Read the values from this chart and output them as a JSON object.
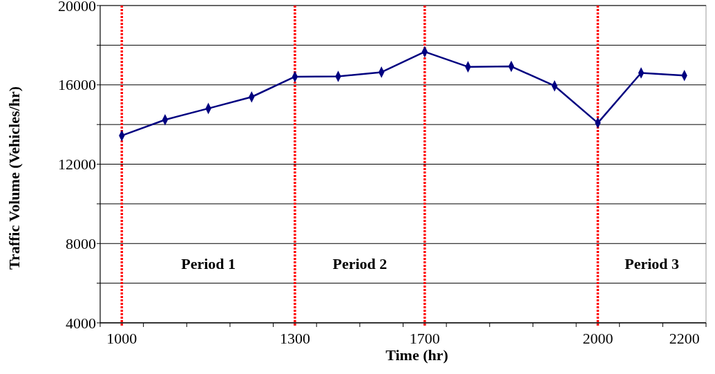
{
  "chart_data": {
    "type": "line",
    "xlabel": "Time (hr)",
    "ylabel": "Traffic Volume (Vehicles/hr)",
    "categories": [
      "1000",
      null,
      null,
      null,
      "1300",
      null,
      null,
      "1700",
      null,
      null,
      null,
      "2000",
      null,
      "2200"
    ],
    "series": [
      {
        "color": "#000080",
        "values": [
          13440,
          14240,
          14810,
          15390,
          16410,
          16430,
          16640,
          17670,
          16910,
          16930,
          15950,
          14080,
          16600,
          16470
        ]
      }
    ],
    "ylim": [
      4000,
      20000
    ],
    "yticks": [
      4000,
      {
        "value": 6000,
        "label": null
      },
      8000,
      {
        "value": 10000,
        "label": null
      },
      12000,
      {
        "value": 14000,
        "label": null
      },
      16000,
      {
        "value": 18000,
        "label": null
      },
      20000
    ],
    "grid": "y",
    "marker": "diamond",
    "line_style": "solid",
    "ref_lines": [
      {
        "axis": "x",
        "value": "1000",
        "color": "#ff0000",
        "line_style": "dotted"
      },
      {
        "axis": "x",
        "value": "1300",
        "color": "#ff0000",
        "line_style": "dotted"
      },
      {
        "axis": "x",
        "value": "1700",
        "color": "#ff0000",
        "line_style": "dotted"
      },
      {
        "axis": "x",
        "value": "2000",
        "color": "#ff0000",
        "line_style": "dotted"
      }
    ],
    "annotations": [
      "Period 1",
      "Period 2",
      "Period 3"
    ]
  }
}
